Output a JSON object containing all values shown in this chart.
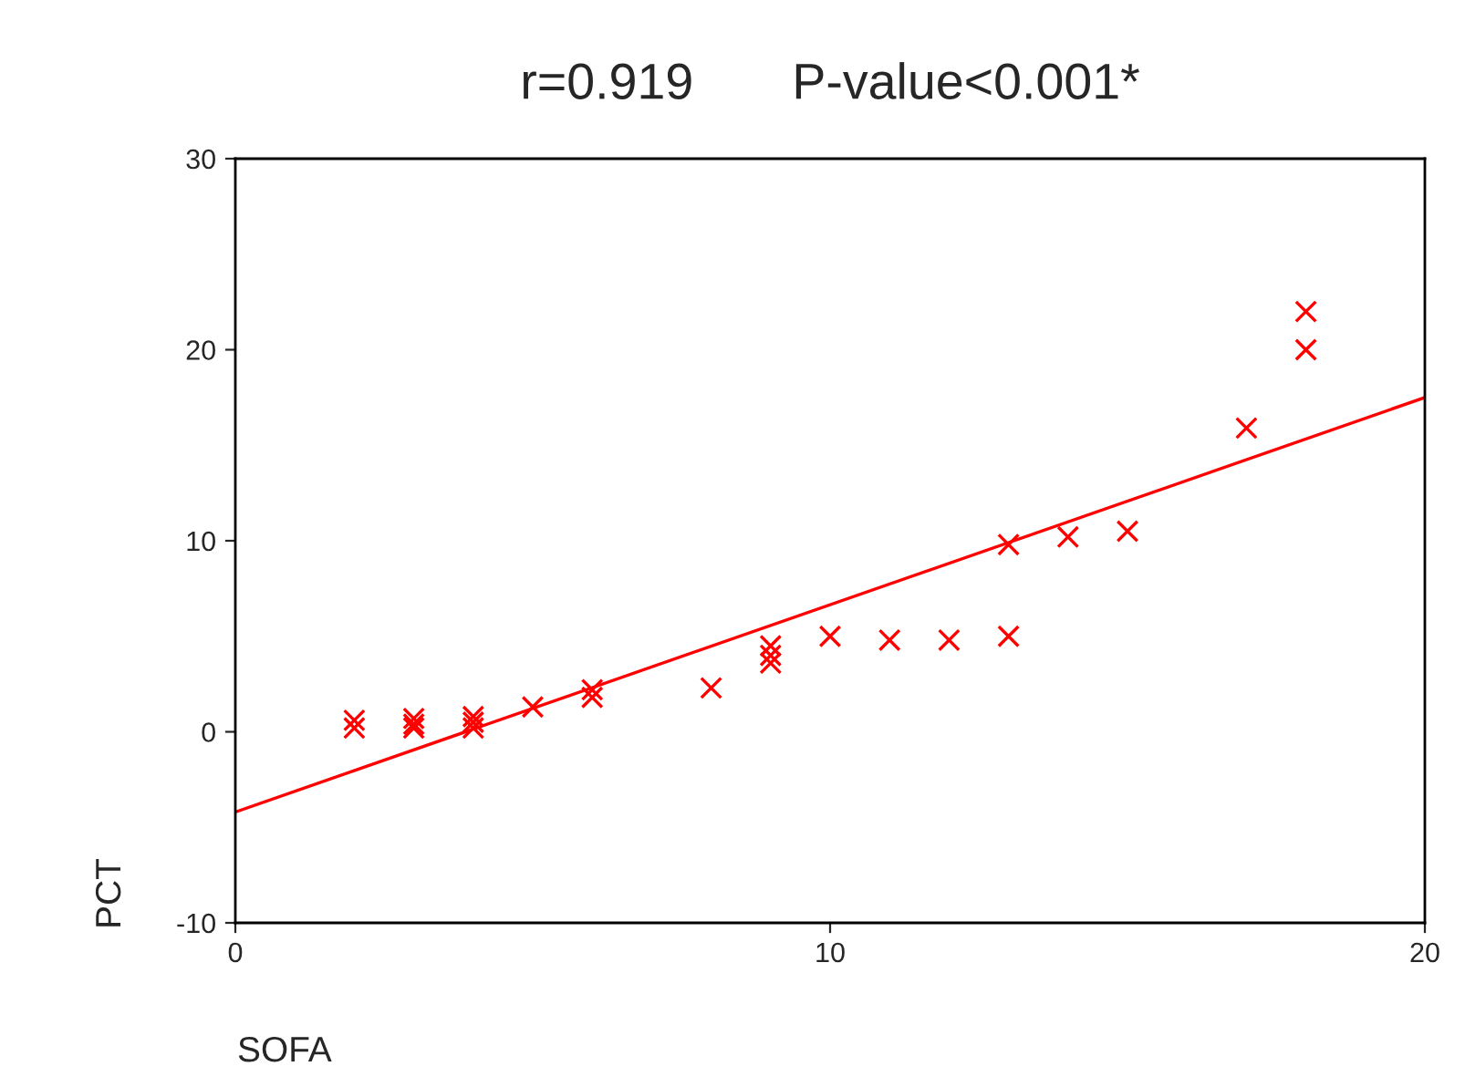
{
  "chart_data": {
    "type": "scatter",
    "title": "r=0.919       P-value<0.001*",
    "xlabel": "SOFA",
    "ylabel": "PCT",
    "xlim": [
      0,
      20
    ],
    "xticks": [
      0,
      10,
      20
    ],
    "ylim": [
      -10,
      30
    ],
    "yticks": [
      -10,
      0,
      10,
      20,
      30
    ],
    "grid": false,
    "legend": false,
    "marker": "cross",
    "series": [
      {
        "color": "#ff0000",
        "x": [
          2,
          2,
          3,
          3,
          3,
          4,
          4,
          4,
          5,
          6,
          6,
          8,
          9,
          9,
          9,
          10,
          11,
          12,
          13,
          13,
          14,
          15,
          17,
          18,
          18
        ],
        "values": [
          0.6,
          0.2,
          0.7,
          0.4,
          0.2,
          0.8,
          0.5,
          0.2,
          1.3,
          2.2,
          1.8,
          2.3,
          4.5,
          4.0,
          3.6,
          5.0,
          4.8,
          4.8,
          5.0,
          9.8,
          10.2,
          10.5,
          15.9,
          20.0,
          22.0
        ]
      },
      {
        "type": "line",
        "color": "#ff0000",
        "x": [
          0,
          20
        ],
        "values": [
          -4.2,
          17.5
        ],
        "marker": "none",
        "line_style": "solid"
      }
    ]
  }
}
